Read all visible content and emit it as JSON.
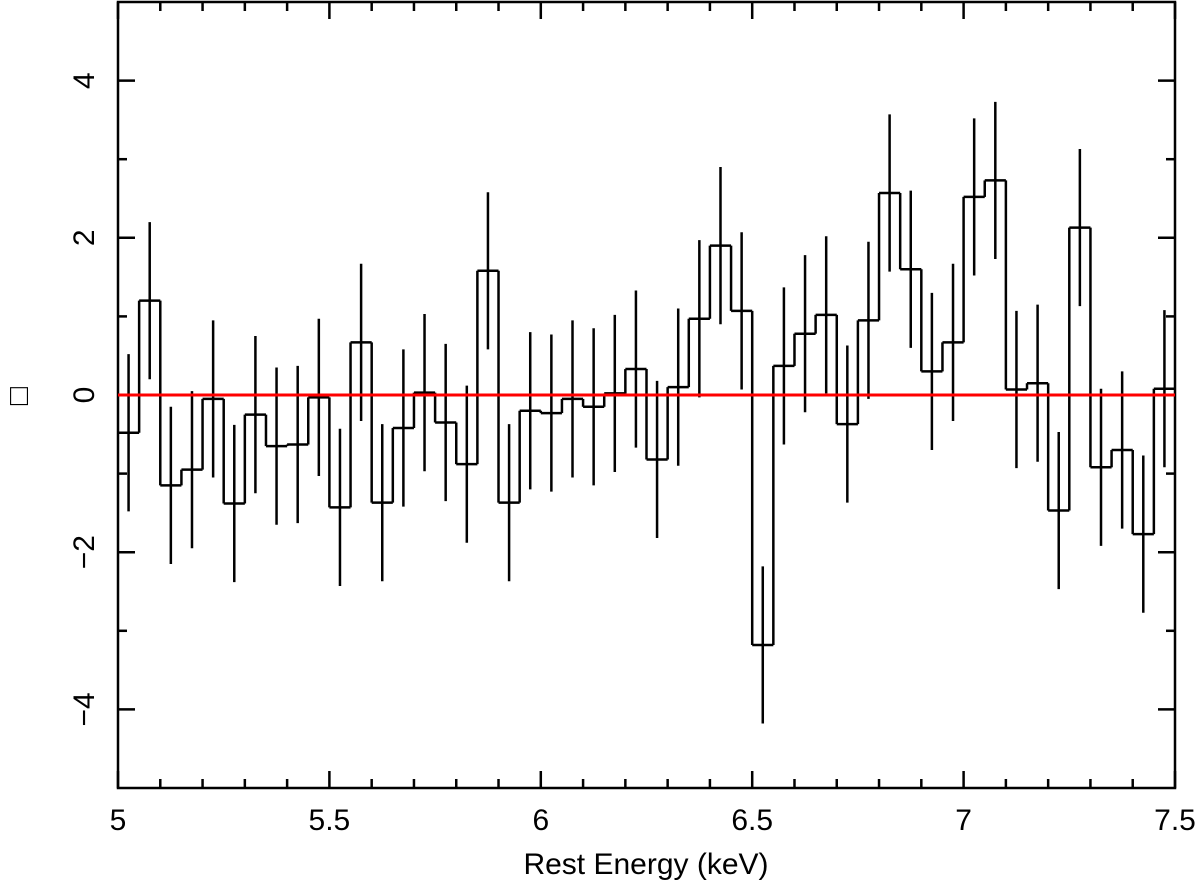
{
  "chart_data": {
    "type": "line",
    "style": "histogram-step with error bars",
    "xlabel": "Rest Energy (keV)",
    "ylabel": "□",
    "xlim": [
      5.0,
      7.5
    ],
    "ylim": [
      -5.0,
      5.0
    ],
    "x_ticks": [
      "5",
      "5.5",
      "6",
      "6.5",
      "7",
      "7.5"
    ],
    "y_ticks": [
      "−4",
      "−2",
      "0",
      "2",
      "4"
    ],
    "bin_width_keV": 0.05,
    "series": [
      {
        "color": "#000000",
        "x_bin_start": [
          5.0,
          5.05,
          5.1,
          5.15,
          5.2,
          5.25,
          5.3,
          5.35,
          5.4,
          5.45,
          5.5,
          5.55,
          5.6,
          5.65,
          5.7,
          5.75,
          5.8,
          5.85,
          5.9,
          5.95,
          6.0,
          6.05,
          6.1,
          6.15,
          6.2,
          6.25,
          6.3,
          6.35,
          6.4,
          6.45,
          6.5,
          6.55,
          6.6,
          6.65,
          6.7,
          6.75,
          6.8,
          6.85,
          6.9,
          6.95,
          7.0,
          7.05,
          7.1,
          7.15,
          7.2,
          7.25,
          7.3,
          7.35,
          7.4,
          7.45
        ],
        "values": [
          -0.48,
          1.2,
          -1.15,
          -0.95,
          -0.05,
          -1.38,
          -0.25,
          -0.65,
          -0.63,
          -0.03,
          -1.43,
          0.67,
          -1.37,
          -0.42,
          0.03,
          -0.35,
          -0.88,
          1.58,
          -1.37,
          -0.2,
          -0.23,
          -0.05,
          -0.15,
          0.02,
          0.33,
          -0.82,
          0.1,
          0.97,
          1.9,
          1.07,
          -3.18,
          0.37,
          0.78,
          1.02,
          -0.37,
          0.95,
          2.57,
          1.6,
          0.3,
          0.67,
          2.52,
          2.73,
          0.07,
          0.15,
          -1.47,
          2.13,
          -0.92,
          -0.7,
          -1.77,
          0.08
        ],
        "errors": [
          1.0,
          1.0,
          1.0,
          1.0,
          1.0,
          1.0,
          1.0,
          1.0,
          1.0,
          1.0,
          1.0,
          1.0,
          1.0,
          1.0,
          1.0,
          1.0,
          1.0,
          1.0,
          1.0,
          1.0,
          1.0,
          1.0,
          1.0,
          1.0,
          1.0,
          1.0,
          1.0,
          1.0,
          1.0,
          1.0,
          1.0,
          1.0,
          1.0,
          1.0,
          1.0,
          1.0,
          1.0,
          1.0,
          1.0,
          1.0,
          1.0,
          1.0,
          1.0,
          1.0,
          1.0,
          1.0,
          1.0,
          1.0,
          1.0,
          1.0
        ]
      }
    ],
    "reference_line": {
      "y": 0,
      "color": "#ff0000"
    }
  }
}
